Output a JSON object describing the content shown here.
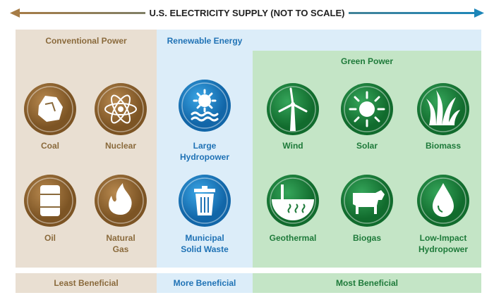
{
  "header": {
    "title": "U.S. ELECTRICITY SUPPLY (NOT TO SCALE)"
  },
  "sections": {
    "conventional": {
      "title": "Conventional Power",
      "items": [
        {
          "label": [
            "Coal"
          ]
        },
        {
          "label": [
            "Nuclear"
          ]
        },
        {
          "label": [
            "Oil"
          ]
        },
        {
          "label": [
            "Natural",
            "Gas"
          ]
        }
      ]
    },
    "renewable": {
      "title": "Renewable Energy",
      "items": [
        {
          "label": [
            "Large",
            "Hydropower"
          ]
        },
        {
          "label": [
            "Municipal",
            "Solid Waste"
          ]
        }
      ]
    },
    "green": {
      "title": "Green Power",
      "items": [
        {
          "label": [
            "Wind"
          ]
        },
        {
          "label": [
            "Solar"
          ]
        },
        {
          "label": [
            "Biomass"
          ]
        },
        {
          "label": [
            "Geothermal"
          ]
        },
        {
          "label": [
            "Biogas"
          ]
        },
        {
          "label": [
            "Low-Impact",
            "Hydropower"
          ]
        }
      ]
    }
  },
  "footer": {
    "least": "Least Beneficial",
    "more": "More Beneficial",
    "most": "Most Beneficial"
  }
}
